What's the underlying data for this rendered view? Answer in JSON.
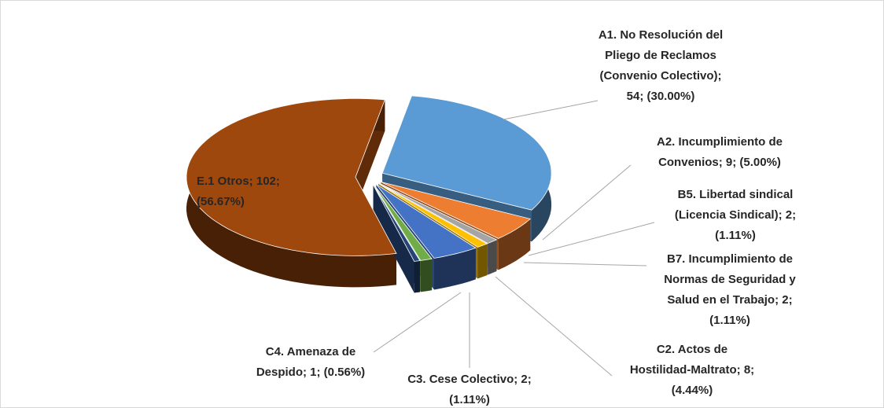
{
  "chart_data": {
    "type": "pie3d",
    "values": [
      54,
      9,
      2,
      2,
      8,
      2,
      1,
      102
    ],
    "value_labels": [
      "A1. No Resolución del\nPliego de Reclamos\n(Convenio Colectivo);\n54; (30.00%)",
      "A2. Incumplimiento de\nConvenios; 9; (5.00%)",
      "B5. Libertad sindical\n(Licencia Sindical); 2;\n(1.11%)",
      "B7. Incumplimiento de\nNormas de Seguridad y\nSalud en el Trabajo; 2;\n(1.11%)",
      "C2. Actos de\nHostilidad-Maltrato; 8;\n(4.44%)",
      "C3. Cese Colectivo; 2;\n(1.11%)",
      "C4. Amenaza de\nDespido; 1; (0.56%)",
      "E.1 Otros; 102;\n(56.67%)"
    ],
    "colors": [
      "#5b9bd5",
      "#ed7d31",
      "#a5a5a5",
      "#ffc000",
      "#4472c4",
      "#70ad47",
      "#264478",
      "#9e480e"
    ]
  }
}
